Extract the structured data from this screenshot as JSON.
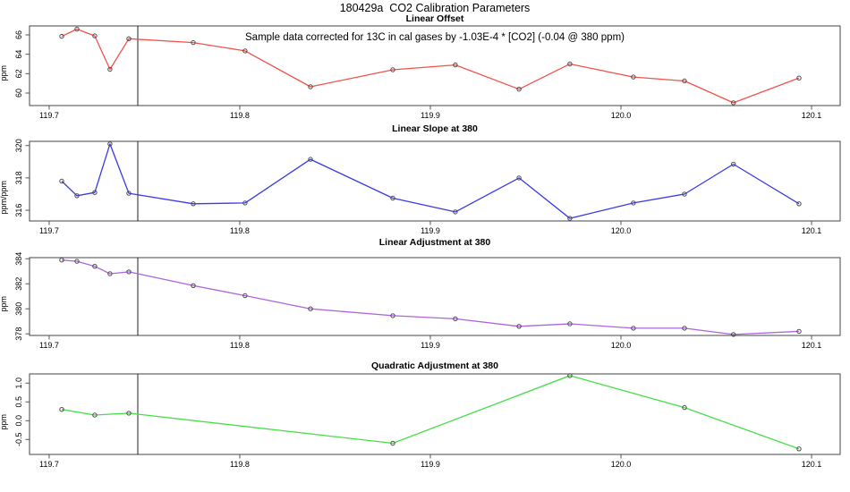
{
  "header": {
    "title": "180429a  CO2 Calibration Parameters"
  },
  "colors": {
    "axis": "#555555",
    "marker": "#4a4a4a",
    "vline": "#222222",
    "text": "#000000"
  },
  "chart_data": [
    {
      "type": "line",
      "title": "Linear Offset",
      "ylabel": "ppm",
      "color": "#f0524b",
      "annotation": "Sample data corrected for 13C in cal gases by -1.03E-4 * [CO2] (-0.04 @ 380 ppm)",
      "xlim": [
        119.6897,
        120.115
      ],
      "ylim": [
        58.71,
        66.92
      ],
      "xticks": [
        119.7,
        119.8,
        119.9,
        120.0,
        120.1
      ],
      "xtick_labels": [
        "119.7",
        "119.8",
        "119.9",
        "120.0",
        "120.1"
      ],
      "yticks": [
        60,
        62,
        64,
        66
      ],
      "ytick_labels": [
        "60",
        "62",
        "64",
        "66"
      ],
      "vline": 119.7465,
      "x": [
        119.7066,
        119.7146,
        119.7239,
        119.7319,
        119.7418,
        119.7756,
        119.8028,
        119.8371,
        119.8803,
        119.9131,
        119.9465,
        119.9732,
        120.0065,
        120.0333,
        120.059,
        120.0934
      ],
      "values": [
        65.85,
        66.6,
        65.9,
        62.45,
        65.6,
        65.2,
        64.35,
        60.65,
        62.4,
        62.9,
        60.4,
        63.0,
        61.65,
        61.25,
        59.0,
        61.55
      ]
    },
    {
      "type": "line",
      "title": "Linear Slope at 380",
      "ylabel": "ppm/ppm",
      "color": "#3a3ae8",
      "xlim": [
        119.6897,
        120.115
      ],
      "ylim": [
        315.34,
        320.26
      ],
      "xticks": [
        119.7,
        119.8,
        119.9,
        120.0,
        120.1
      ],
      "xtick_labels": [
        "119.7",
        "119.8",
        "119.9",
        "120.0",
        "120.1"
      ],
      "yticks": [
        316,
        318,
        320
      ],
      "ytick_labels": [
        "316",
        "318",
        "320"
      ],
      "vline": 119.7465,
      "x": [
        119.7066,
        119.7146,
        119.7239,
        119.7319,
        119.7418,
        119.7756,
        119.8028,
        119.8371,
        119.8803,
        119.9131,
        119.9465,
        119.9732,
        120.0065,
        120.0333,
        120.059,
        120.0934
      ],
      "values": [
        317.8,
        316.9,
        317.1,
        320.1,
        317.05,
        316.4,
        316.45,
        319.15,
        316.75,
        315.9,
        318.0,
        315.5,
        316.45,
        317.0,
        318.85,
        316.4
      ]
    },
    {
      "type": "line",
      "title": "Linear Adjustment at 380",
      "ylabel": "ppm",
      "color": "#ae64de",
      "xlim": [
        119.6897,
        120.115
      ],
      "ylim": [
        377.87,
        384.09
      ],
      "xticks": [
        119.7,
        119.8,
        119.9,
        120.0,
        120.1
      ],
      "xtick_labels": [
        "119.7",
        "119.8",
        "119.9",
        "120.0",
        "120.1"
      ],
      "yticks": [
        378,
        380,
        382,
        384
      ],
      "ytick_labels": [
        "378",
        "380",
        "382",
        "384"
      ],
      "vline": 119.7465,
      "x": [
        119.7066,
        119.7146,
        119.7239,
        119.7319,
        119.7418,
        119.7756,
        119.8028,
        119.8371,
        119.8803,
        119.9131,
        119.9465,
        119.9732,
        120.0065,
        120.0333,
        120.059,
        120.0934
      ],
      "values": [
        383.9,
        383.8,
        383.4,
        382.8,
        382.95,
        381.85,
        381.05,
        380.0,
        379.45,
        379.2,
        378.6,
        378.8,
        378.45,
        378.45,
        377.95,
        378.2
      ]
    },
    {
      "type": "line",
      "title": "Quadratic Adjustment at 380",
      "ylabel": "ppm",
      "color": "#47df47",
      "xlim": [
        119.6897,
        120.115
      ],
      "ylim": [
        -0.898,
        1.245
      ],
      "xticks": [
        119.7,
        119.8,
        119.9,
        120.0,
        120.1
      ],
      "xtick_labels": [
        "119.7",
        "119.8",
        "119.9",
        "120.0",
        "120.1"
      ],
      "yticks": [
        -0.5,
        0.0,
        0.5,
        1.0
      ],
      "ytick_labels": [
        "-0.5",
        "0.0",
        "0.5",
        "1.0"
      ],
      "vline": 119.7465,
      "x": [
        119.7066,
        119.7239,
        119.7418,
        119.8803,
        119.9732,
        120.0333,
        120.0934
      ],
      "values": [
        0.3,
        0.15,
        0.2,
        -0.6,
        1.2,
        0.35,
        -0.75
      ]
    }
  ]
}
